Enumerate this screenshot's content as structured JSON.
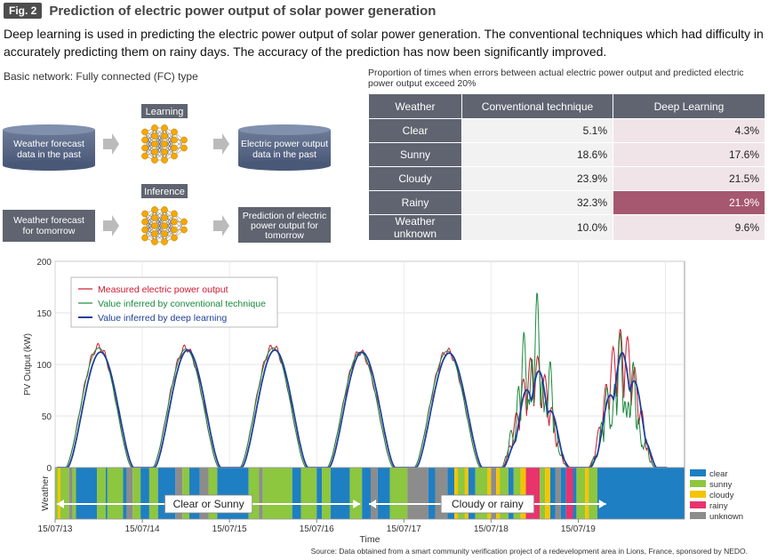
{
  "figure": {
    "badge": "Fig. 2",
    "title": "Prediction of electric power output of solar power generation"
  },
  "description": "Deep learning is used in predicting the electric power output of solar power generation. The conventional techniques which had difficulty in accurately predicting them on rainy days. The accuracy of the prediction has now been significantly improved.",
  "network_label": "Basic network: Fully connected (FC) type",
  "diagram": {
    "learning": {
      "label": "Learning",
      "input": "Weather forecast data in the past",
      "output": "Electric power output data in the past"
    },
    "inference": {
      "label": "Inference",
      "input": "Weather forecast for tomorrow",
      "output": "Prediction of electric power output for tomorrow"
    }
  },
  "error_table": {
    "title": "Proportion of times when errors between actual electric power output and predicted electric power output exceed 20%",
    "headers": [
      "Weather",
      "Conventional technique",
      "Deep Learning"
    ],
    "rows": [
      {
        "weather": "Clear",
        "conventional": "5.1%",
        "deep": "4.3%"
      },
      {
        "weather": "Sunny",
        "conventional": "18.6%",
        "deep": "17.6%"
      },
      {
        "weather": "Cloudy",
        "conventional": "23.9%",
        "deep": "21.5%"
      },
      {
        "weather": "Rainy",
        "conventional": "32.3%",
        "deep": "21.9%"
      },
      {
        "weather": "Weather unknown",
        "conventional": "10.0%",
        "deep": "9.6%"
      }
    ],
    "highlight_color": "#a5586f"
  },
  "chart_data": {
    "type": "line",
    "ylabel": "PV Output (kW)",
    "xlabel": "Time",
    "ylim": [
      0,
      200
    ],
    "yticks": [
      0,
      50,
      100,
      150,
      200
    ],
    "xticks": [
      "15/07/13",
      "15/07/14",
      "15/07/15",
      "15/07/16",
      "15/07/17",
      "15/07/18",
      "15/07/19"
    ],
    "legend": {
      "placement": "top-left",
      "entries": [
        "Measured electric power output",
        "Value inferred by conventional technique",
        "Value inferred by deep learning"
      ]
    },
    "series_colors": {
      "measured": "#d0182f",
      "conventional": "#1a8a3c",
      "deep": "#1f3f9a"
    },
    "daily_peaks": {
      "days": [
        "15/07/13",
        "15/07/14",
        "15/07/15",
        "15/07/16",
        "15/07/17",
        "15/07/18",
        "15/07/19"
      ],
      "measured": [
        117,
        116,
        117,
        112,
        113,
        110,
        135
      ],
      "conventional": [
        116,
        115,
        116,
        112,
        113,
        173,
        133
      ],
      "deep": [
        112,
        114,
        114,
        112,
        111,
        95,
        112
      ]
    },
    "weather_bar": {
      "ylabel": "Weather",
      "legend": [
        {
          "name": "clear",
          "color": "#1e7fc2"
        },
        {
          "name": "sunny",
          "color": "#8dc63f"
        },
        {
          "name": "cloudy",
          "color": "#f5c400"
        },
        {
          "name": "rainy",
          "color": "#e8336d"
        },
        {
          "name": "unknown",
          "color": "#8c8c8c"
        }
      ],
      "periods": [
        {
          "label": "Cloudy or rainy"
        },
        {
          "label": "Clear or Sunny"
        }
      ]
    }
  },
  "source": "Source: Data obtained from a smart community verification project of a redevelopment area in Lions, France, sponsored by NEDO."
}
